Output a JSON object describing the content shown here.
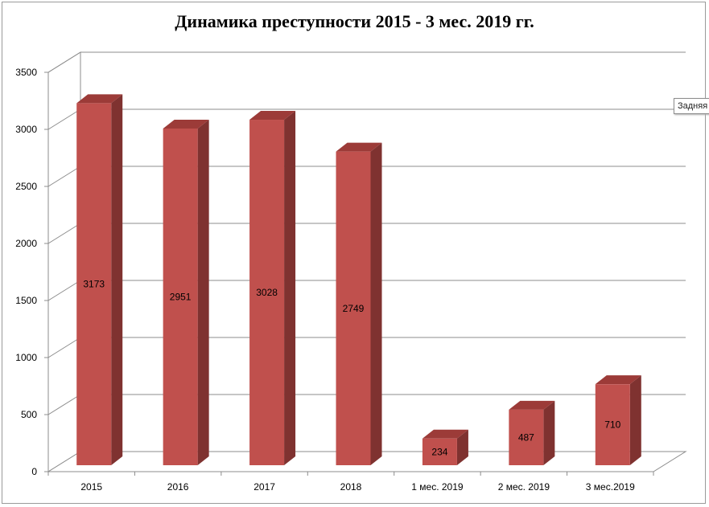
{
  "chart_data": {
    "type": "bar",
    "title": "Динамика преступности 2015 - 3 мес. 2019 гг.",
    "categories": [
      "2015",
      "2016",
      "2017",
      "2018",
      "1 мес. 2019",
      "2 мес. 2019",
      "3 мес.2019"
    ],
    "values": [
      3173,
      2951,
      3028,
      2749,
      234,
      487,
      710
    ],
    "data_labels": [
      "3173",
      "2951",
      "3028",
      "2749",
      "234",
      "487",
      "710"
    ],
    "ylim": [
      0,
      3500
    ],
    "yticks": [
      "0",
      "500",
      "1000",
      "1500",
      "2000",
      "2500",
      "3000",
      "3500"
    ],
    "xlabel": "",
    "ylabel": "",
    "grid": true,
    "legend": "none",
    "style": "3d-column",
    "colors": {
      "front": "#c0504d",
      "side": "#7f3230",
      "top": "#9c3b38",
      "grid": "#8c8c8c"
    }
  },
  "tooltip": {
    "text": "Задняя"
  }
}
